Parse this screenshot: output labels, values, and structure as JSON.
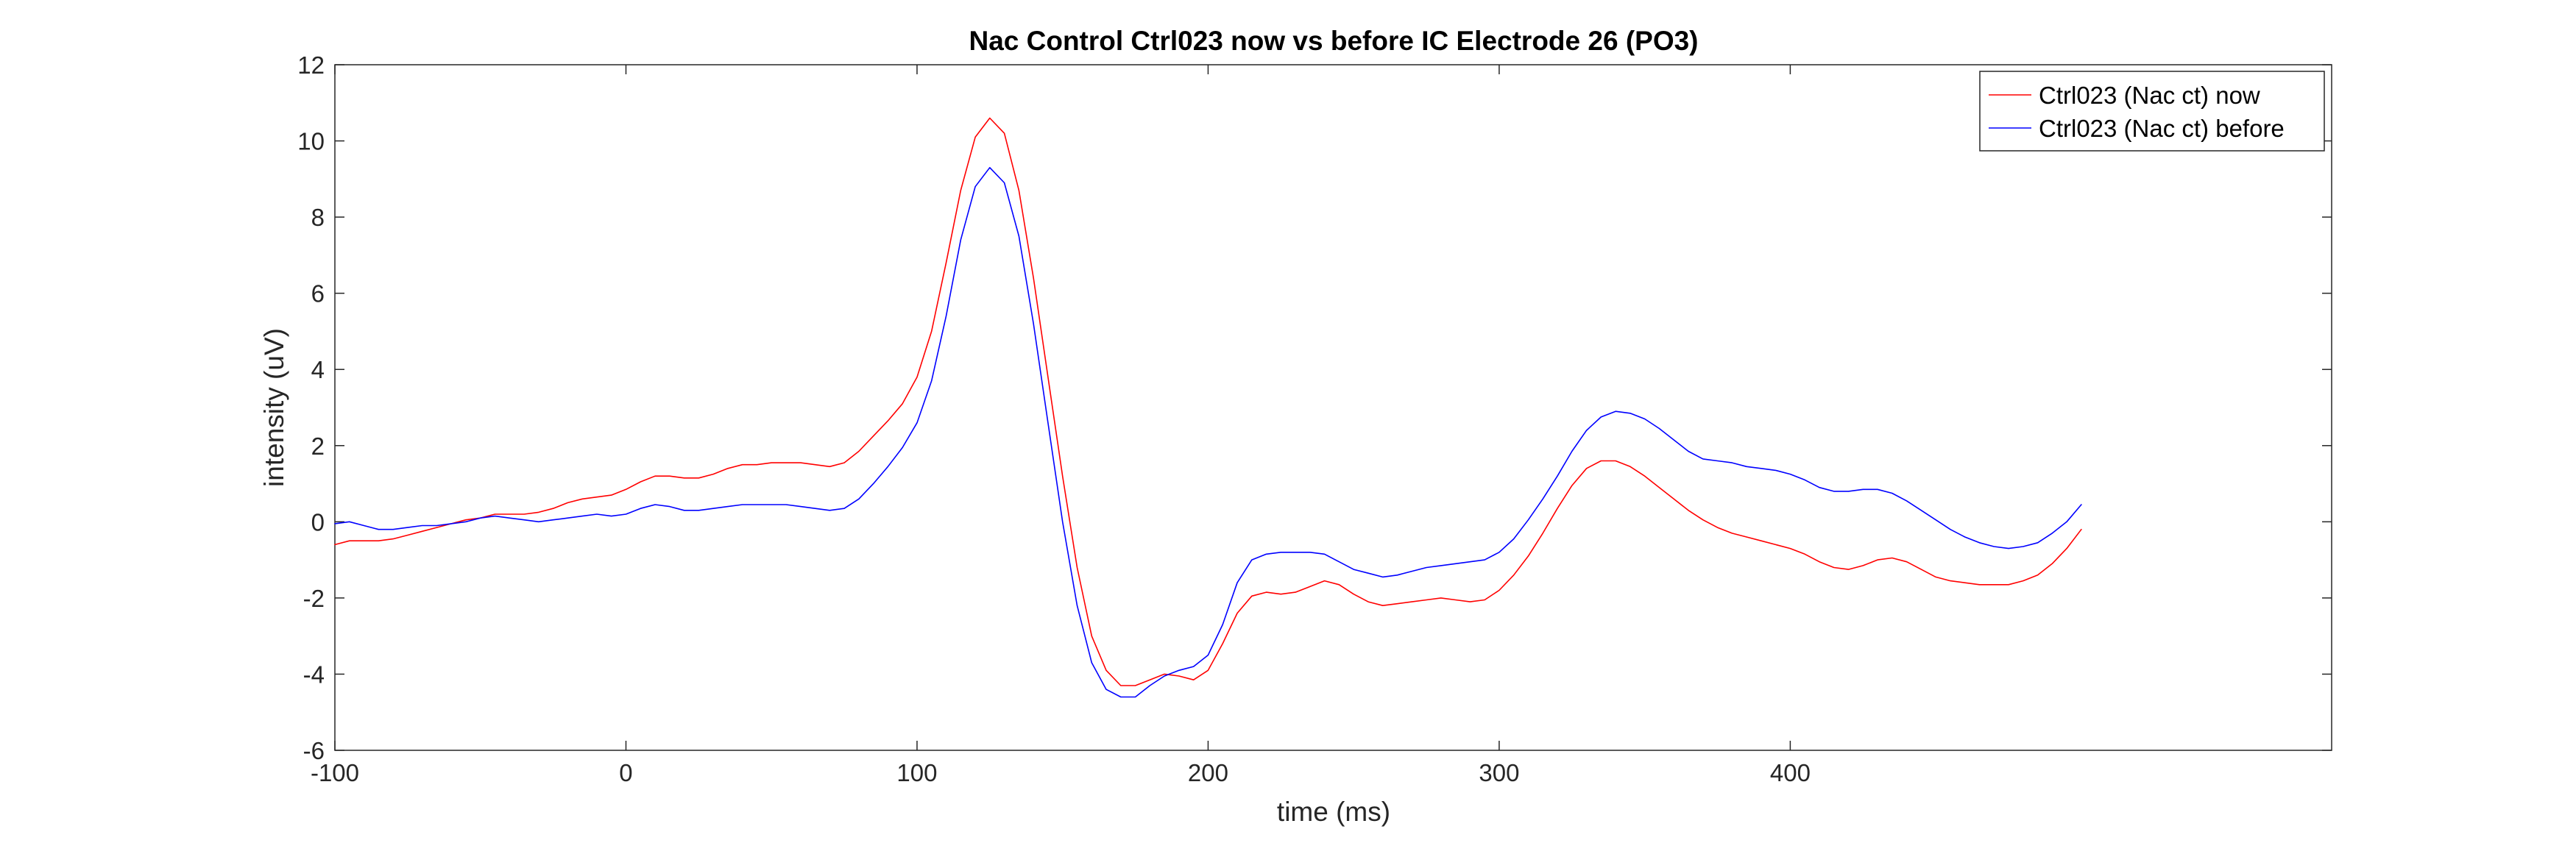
{
  "chart_data": {
    "type": "line",
    "title": "Nac Control Ctrl023 now vs before IC Electrode 26 (PO3)",
    "xlabel": "time (ms)",
    "ylabel": "intensity (uV)",
    "xlim": [
      -100,
      586
    ],
    "ylim": [
      -6,
      12
    ],
    "xticks": [
      -100,
      0,
      100,
      200,
      300,
      400
    ],
    "yticks": [
      -6,
      -4,
      -2,
      0,
      2,
      4,
      6,
      8,
      10,
      12
    ],
    "grid": false,
    "legend_position": "top-right",
    "series": [
      {
        "name": "Ctrl023 (Nac ct) now",
        "color": "#ff0000",
        "points": [
          [
            -100,
            -0.6
          ],
          [
            -95,
            -0.5
          ],
          [
            -90,
            -0.5
          ],
          [
            -85,
            -0.5
          ],
          [
            -80,
            -0.45
          ],
          [
            -75,
            -0.35
          ],
          [
            -70,
            -0.25
          ],
          [
            -65,
            -0.15
          ],
          [
            -60,
            -0.05
          ],
          [
            -55,
            0.05
          ],
          [
            -50,
            0.1
          ],
          [
            -45,
            0.2
          ],
          [
            -40,
            0.2
          ],
          [
            -35,
            0.2
          ],
          [
            -30,
            0.25
          ],
          [
            -25,
            0.35
          ],
          [
            -20,
            0.5
          ],
          [
            -15,
            0.6
          ],
          [
            -10,
            0.65
          ],
          [
            -5,
            0.7
          ],
          [
            0,
            0.85
          ],
          [
            5,
            1.05
          ],
          [
            10,
            1.2
          ],
          [
            15,
            1.2
          ],
          [
            20,
            1.15
          ],
          [
            25,
            1.15
          ],
          [
            30,
            1.25
          ],
          [
            35,
            1.4
          ],
          [
            40,
            1.5
          ],
          [
            45,
            1.5
          ],
          [
            50,
            1.55
          ],
          [
            55,
            1.55
          ],
          [
            60,
            1.55
          ],
          [
            65,
            1.5
          ],
          [
            70,
            1.45
          ],
          [
            75,
            1.55
          ],
          [
            80,
            1.85
          ],
          [
            85,
            2.25
          ],
          [
            90,
            2.65
          ],
          [
            95,
            3.1
          ],
          [
            100,
            3.8
          ],
          [
            105,
            5.0
          ],
          [
            110,
            6.8
          ],
          [
            115,
            8.7
          ],
          [
            120,
            10.1
          ],
          [
            125,
            10.6
          ],
          [
            130,
            10.2
          ],
          [
            135,
            8.7
          ],
          [
            140,
            6.4
          ],
          [
            145,
            3.8
          ],
          [
            150,
            1.2
          ],
          [
            155,
            -1.2
          ],
          [
            160,
            -3.0
          ],
          [
            165,
            -3.9
          ],
          [
            170,
            -4.3
          ],
          [
            175,
            -4.3
          ],
          [
            180,
            -4.15
          ],
          [
            185,
            -4.0
          ],
          [
            190,
            -4.05
          ],
          [
            195,
            -4.15
          ],
          [
            200,
            -3.9
          ],
          [
            205,
            -3.2
          ],
          [
            210,
            -2.4
          ],
          [
            215,
            -1.95
          ],
          [
            220,
            -1.85
          ],
          [
            225,
            -1.9
          ],
          [
            230,
            -1.85
          ],
          [
            235,
            -1.7
          ],
          [
            240,
            -1.55
          ],
          [
            245,
            -1.65
          ],
          [
            250,
            -1.9
          ],
          [
            255,
            -2.1
          ],
          [
            260,
            -2.2
          ],
          [
            265,
            -2.15
          ],
          [
            270,
            -2.1
          ],
          [
            275,
            -2.05
          ],
          [
            280,
            -2.0
          ],
          [
            285,
            -2.05
          ],
          [
            290,
            -2.1
          ],
          [
            295,
            -2.05
          ],
          [
            300,
            -1.8
          ],
          [
            305,
            -1.4
          ],
          [
            310,
            -0.9
          ],
          [
            315,
            -0.3
          ],
          [
            320,
            0.35
          ],
          [
            325,
            0.95
          ],
          [
            330,
            1.4
          ],
          [
            335,
            1.6
          ],
          [
            340,
            1.6
          ],
          [
            345,
            1.45
          ],
          [
            350,
            1.2
          ],
          [
            355,
            0.9
          ],
          [
            360,
            0.6
          ],
          [
            365,
            0.3
          ],
          [
            370,
            0.05
          ],
          [
            375,
            -0.15
          ],
          [
            380,
            -0.3
          ],
          [
            385,
            -0.4
          ],
          [
            390,
            -0.5
          ],
          [
            395,
            -0.6
          ],
          [
            400,
            -0.7
          ],
          [
            405,
            -0.85
          ],
          [
            410,
            -1.05
          ],
          [
            415,
            -1.2
          ],
          [
            420,
            -1.25
          ],
          [
            425,
            -1.15
          ],
          [
            430,
            -1.0
          ],
          [
            435,
            -0.95
          ],
          [
            440,
            -1.05
          ],
          [
            445,
            -1.25
          ],
          [
            450,
            -1.45
          ],
          [
            455,
            -1.55
          ],
          [
            460,
            -1.6
          ],
          [
            465,
            -1.65
          ],
          [
            470,
            -1.65
          ],
          [
            475,
            -1.65
          ],
          [
            480,
            -1.55
          ],
          [
            485,
            -1.4
          ],
          [
            490,
            -1.1
          ],
          [
            495,
            -0.7
          ],
          [
            500,
            -0.2
          ]
        ]
      },
      {
        "name": "Ctrl023 (Nac ct) before",
        "color": "#0000ff",
        "points": [
          [
            -100,
            -0.05
          ],
          [
            -95,
            0.0
          ],
          [
            -90,
            -0.1
          ],
          [
            -85,
            -0.2
          ],
          [
            -80,
            -0.2
          ],
          [
            -75,
            -0.15
          ],
          [
            -70,
            -0.1
          ],
          [
            -65,
            -0.1
          ],
          [
            -60,
            -0.05
          ],
          [
            -55,
            0.0
          ],
          [
            -50,
            0.1
          ],
          [
            -45,
            0.15
          ],
          [
            -40,
            0.1
          ],
          [
            -35,
            0.05
          ],
          [
            -30,
            0.0
          ],
          [
            -25,
            0.05
          ],
          [
            -20,
            0.1
          ],
          [
            -15,
            0.15
          ],
          [
            -10,
            0.2
          ],
          [
            -5,
            0.15
          ],
          [
            0,
            0.2
          ],
          [
            5,
            0.35
          ],
          [
            10,
            0.45
          ],
          [
            15,
            0.4
          ],
          [
            20,
            0.3
          ],
          [
            25,
            0.3
          ],
          [
            30,
            0.35
          ],
          [
            35,
            0.4
          ],
          [
            40,
            0.45
          ],
          [
            45,
            0.45
          ],
          [
            50,
            0.45
          ],
          [
            55,
            0.45
          ],
          [
            60,
            0.4
          ],
          [
            65,
            0.35
          ],
          [
            70,
            0.3
          ],
          [
            75,
            0.35
          ],
          [
            80,
            0.6
          ],
          [
            85,
            1.0
          ],
          [
            90,
            1.45
          ],
          [
            95,
            1.95
          ],
          [
            100,
            2.6
          ],
          [
            105,
            3.7
          ],
          [
            110,
            5.4
          ],
          [
            115,
            7.4
          ],
          [
            120,
            8.8
          ],
          [
            125,
            9.3
          ],
          [
            130,
            8.9
          ],
          [
            135,
            7.5
          ],
          [
            140,
            5.2
          ],
          [
            145,
            2.6
          ],
          [
            150,
            0.0
          ],
          [
            155,
            -2.2
          ],
          [
            160,
            -3.7
          ],
          [
            165,
            -4.4
          ],
          [
            170,
            -4.6
          ],
          [
            175,
            -4.6
          ],
          [
            180,
            -4.3
          ],
          [
            185,
            -4.05
          ],
          [
            190,
            -3.9
          ],
          [
            195,
            -3.8
          ],
          [
            200,
            -3.5
          ],
          [
            205,
            -2.7
          ],
          [
            210,
            -1.6
          ],
          [
            215,
            -1.0
          ],
          [
            220,
            -0.85
          ],
          [
            225,
            -0.8
          ],
          [
            230,
            -0.8
          ],
          [
            235,
            -0.8
          ],
          [
            240,
            -0.85
          ],
          [
            245,
            -1.05
          ],
          [
            250,
            -1.25
          ],
          [
            255,
            -1.35
          ],
          [
            260,
            -1.45
          ],
          [
            265,
            -1.4
          ],
          [
            270,
            -1.3
          ],
          [
            275,
            -1.2
          ],
          [
            280,
            -1.15
          ],
          [
            285,
            -1.1
          ],
          [
            290,
            -1.05
          ],
          [
            295,
            -1.0
          ],
          [
            300,
            -0.8
          ],
          [
            305,
            -0.45
          ],
          [
            310,
            0.05
          ],
          [
            315,
            0.6
          ],
          [
            320,
            1.2
          ],
          [
            325,
            1.85
          ],
          [
            330,
            2.4
          ],
          [
            335,
            2.75
          ],
          [
            340,
            2.9
          ],
          [
            345,
            2.85
          ],
          [
            350,
            2.7
          ],
          [
            355,
            2.45
          ],
          [
            360,
            2.15
          ],
          [
            365,
            1.85
          ],
          [
            370,
            1.65
          ],
          [
            375,
            1.6
          ],
          [
            380,
            1.55
          ],
          [
            385,
            1.45
          ],
          [
            390,
            1.4
          ],
          [
            395,
            1.35
          ],
          [
            400,
            1.25
          ],
          [
            405,
            1.1
          ],
          [
            410,
            0.9
          ],
          [
            415,
            0.8
          ],
          [
            420,
            0.8
          ],
          [
            425,
            0.85
          ],
          [
            430,
            0.85
          ],
          [
            435,
            0.75
          ],
          [
            440,
            0.55
          ],
          [
            445,
            0.3
          ],
          [
            450,
            0.05
          ],
          [
            455,
            -0.2
          ],
          [
            460,
            -0.4
          ],
          [
            465,
            -0.55
          ],
          [
            470,
            -0.65
          ],
          [
            475,
            -0.7
          ],
          [
            480,
            -0.65
          ],
          [
            485,
            -0.55
          ],
          [
            490,
            -0.3
          ],
          [
            495,
            0.0
          ],
          [
            500,
            0.45
          ]
        ]
      }
    ]
  }
}
